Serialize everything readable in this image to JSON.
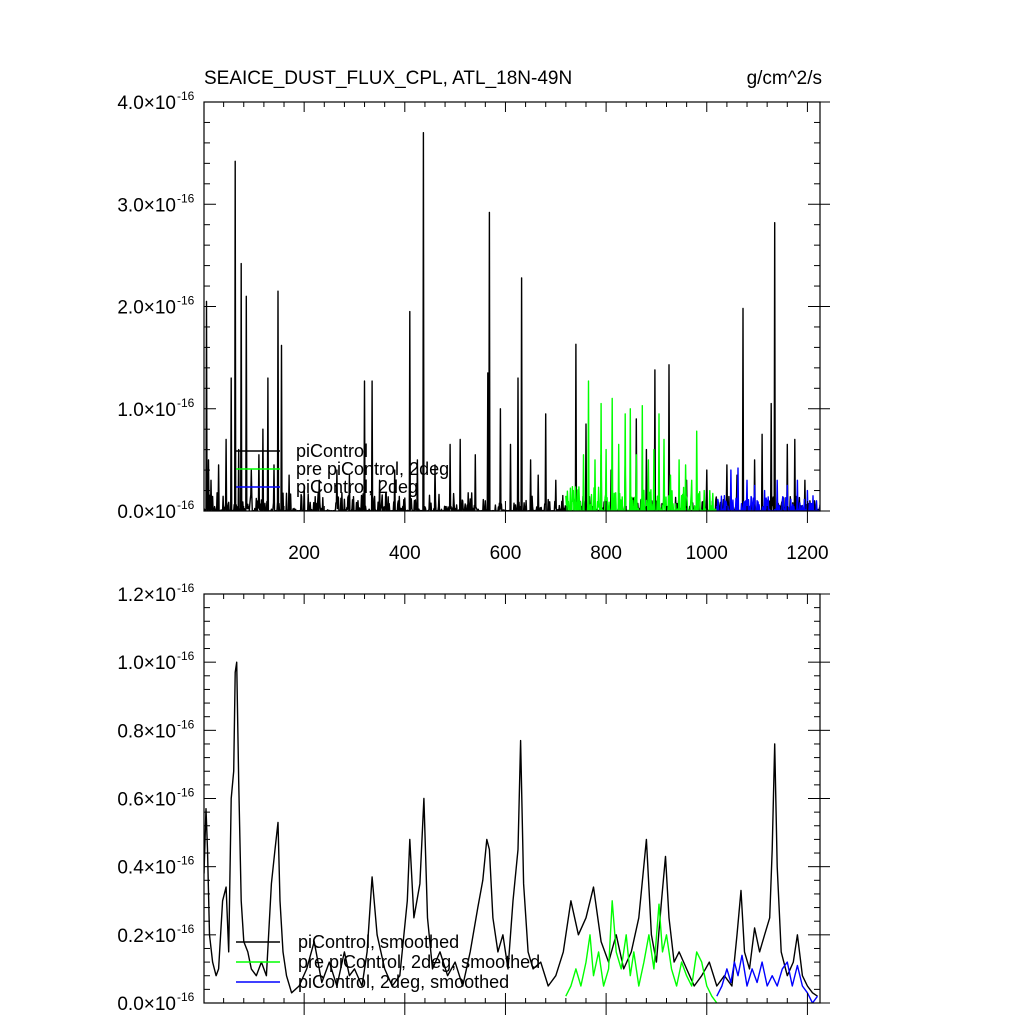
{
  "chart_data": [
    {
      "type": "line",
      "title_left": "SEAICE_DUST_FLUX_CPL, ATL_18N-49N",
      "title_right": "g/cm^2/s",
      "xlim": [
        1,
        1225
      ],
      "ylim": [
        0,
        4e-16
      ],
      "x_ticks": [
        200,
        400,
        600,
        800,
        1000,
        1200
      ],
      "x_tick_labels": [
        "200",
        "400",
        "600",
        "800",
        "1000",
        "1200"
      ],
      "y_ticks": [
        0,
        1e-16,
        2e-16,
        3e-16,
        4e-16
      ],
      "y_tick_labels": [
        {
          "mantissa": "0.0",
          "times": "×10",
          "exponent": "-16"
        },
        {
          "mantissa": "1.0",
          "times": "×10",
          "exponent": "-16"
        },
        {
          "mantissa": "2.0",
          "times": "×10",
          "exponent": "-16"
        },
        {
          "mantissa": "3.0",
          "times": "×10",
          "exponent": "-16"
        },
        {
          "mantissa": "4.0",
          "times": "×10",
          "exponent": "-16"
        }
      ],
      "legend_placement": "lower-left",
      "series": [
        {
          "name": "piControl",
          "color": "#000000",
          "x_range": [
            1,
            730
          ],
          "baseline": 5e-19,
          "noise_amp": 6e-18,
          "peaks": [
            [
              6,
              2.05e-16
            ],
            [
              10,
              5e-17
            ],
            [
              15,
              3e-17
            ],
            [
              30,
              4.5e-17
            ],
            [
              45,
              7e-17
            ],
            [
              55,
              1.3e-16
            ],
            [
              63,
              3.42e-16
            ],
            [
              70,
              6e-17
            ],
            [
              75,
              2.42e-16
            ],
            [
              85,
              2.1e-16
            ],
            [
              95,
              4e-17
            ],
            [
              110,
              5.5e-17
            ],
            [
              118,
              8e-17
            ],
            [
              128,
              1.3e-16
            ],
            [
              140,
              4.5e-17
            ],
            [
              148,
              2.15e-16
            ],
            [
              155,
              1.62e-16
            ],
            [
              170,
              3.5e-17
            ],
            [
              200,
              2.5e-17
            ],
            [
              230,
              3e-17
            ],
            [
              265,
              4e-17
            ],
            [
              290,
              3.5e-17
            ],
            [
              320,
              1.27e-16
            ],
            [
              335,
              1.27e-16
            ],
            [
              350,
              3e-17
            ],
            [
              380,
              4e-17
            ],
            [
              410,
              1.95e-16
            ],
            [
              425,
              5e-17
            ],
            [
              437,
              3.7e-16
            ],
            [
              460,
              4.5e-17
            ],
            [
              490,
              6.5e-17
            ],
            [
              510,
              7e-17
            ],
            [
              540,
              5.5e-17
            ],
            [
              565,
              1.35e-16
            ],
            [
              568,
              2.92e-16
            ],
            [
              590,
              1e-16
            ],
            [
              610,
              6.5e-17
            ],
            [
              625,
              1.3e-16
            ],
            [
              632,
              2.28e-16
            ],
            [
              650,
              5e-17
            ],
            [
              665,
              3.5e-17
            ],
            [
              680,
              9.5e-17
            ],
            [
              700,
              3e-17
            ]
          ]
        },
        {
          "name": "piControl",
          "color": "#000000",
          "x_range": [
            731,
            1225
          ],
          "baseline": 5e-19,
          "noise_amp": 5e-18,
          "peaks": [
            [
              740,
              1.63e-16
            ],
            [
              760,
              8.5e-17
            ],
            [
              790,
              5.5e-17
            ],
            [
              810,
              4e-17
            ],
            [
              838,
              4.5e-17
            ],
            [
              860,
              9e-17
            ],
            [
              880,
              6e-17
            ],
            [
              897,
              1.38e-16
            ],
            [
              925,
              1.43e-16
            ],
            [
              960,
              3e-17
            ],
            [
              1000,
              4e-17
            ],
            [
              1040,
              4.5e-17
            ],
            [
              1060,
              3.5e-17
            ],
            [
              1072,
              1.98e-16
            ],
            [
              1095,
              5e-17
            ],
            [
              1110,
              7.5e-17
            ],
            [
              1128,
              1.05e-16
            ],
            [
              1135,
              2.82e-16
            ],
            [
              1160,
              6.5e-17
            ],
            [
              1175,
              7e-17
            ],
            [
              1195,
              3e-17
            ]
          ]
        },
        {
          "name": "pre piControl, 2deg",
          "color": "#00ff00",
          "x_range": [
            720,
            1020
          ],
          "baseline": 5e-19,
          "noise_amp": 8e-18,
          "peaks": [
            [
              735,
              2e-17
            ],
            [
              755,
              5.5e-17
            ],
            [
              765,
              1.27e-16
            ],
            [
              778,
              5e-17
            ],
            [
              790,
              1.05e-16
            ],
            [
              800,
              6e-17
            ],
            [
              812,
              1.1e-16
            ],
            [
              825,
              6.5e-17
            ],
            [
              838,
              9.5e-17
            ],
            [
              848,
              1e-16
            ],
            [
              860,
              5.5e-17
            ],
            [
              872,
              1.03e-16
            ],
            [
              884,
              5e-17
            ],
            [
              895,
              6e-17
            ],
            [
              905,
              9.5e-17
            ],
            [
              915,
              7e-17
            ],
            [
              928,
              3.5e-17
            ],
            [
              945,
              5e-17
            ],
            [
              958,
              4.5e-17
            ],
            [
              970,
              3e-17
            ],
            [
              980,
              7.8e-17
            ],
            [
              995,
              2e-17
            ]
          ]
        },
        {
          "name": "piControl, 2deg",
          "color": "#0000ff",
          "x_range": [
            1020,
            1225
          ],
          "baseline": 5e-19,
          "noise_amp": 5e-18,
          "peaks": [
            [
              1035,
              1.5e-17
            ],
            [
              1048,
              4e-17
            ],
            [
              1062,
              4.2e-17
            ],
            [
              1080,
              3e-17
            ],
            [
              1095,
              2.5e-17
            ],
            [
              1115,
              2e-17
            ],
            [
              1140,
              3e-17
            ],
            [
              1160,
              2.5e-17
            ],
            [
              1180,
              3e-17
            ],
            [
              1200,
              2e-17
            ],
            [
              1218,
              1e-17
            ]
          ]
        }
      ]
    },
    {
      "type": "line",
      "xlim": [
        1,
        1225
      ],
      "ylim": [
        0,
        1.2e-16
      ],
      "x_ticks": [
        200,
        400,
        600,
        800,
        1000,
        1200
      ],
      "x_tick_labels": [],
      "y_ticks": [
        0,
        2e-17,
        4e-17,
        6e-17,
        8e-17,
        1e-16,
        1.2e-16
      ],
      "y_tick_labels": [
        {
          "mantissa": "0.0",
          "times": "×10",
          "exponent": "-16"
        },
        {
          "mantissa": "0.2",
          "times": "×10",
          "exponent": "-16"
        },
        {
          "mantissa": "0.4",
          "times": "×10",
          "exponent": "-16"
        },
        {
          "mantissa": "0.6",
          "times": "×10",
          "exponent": "-16"
        },
        {
          "mantissa": "0.8",
          "times": "×10",
          "exponent": "-16"
        },
        {
          "mantissa": "1.0",
          "times": "×10",
          "exponent": "-16"
        },
        {
          "mantissa": "1.2",
          "times": "×10",
          "exponent": "-16"
        }
      ],
      "legend_placement": "lower-left",
      "series": [
        {
          "name": "piControl, smoothed",
          "color": "#000000",
          "x": [
            1,
            5,
            8,
            12,
            18,
            25,
            30,
            38,
            45,
            50,
            55,
            60,
            63,
            66,
            70,
            75,
            80,
            88,
            95,
            105,
            115,
            125,
            135,
            142,
            148,
            152,
            158,
            165,
            175,
            190,
            205,
            220,
            235,
            250,
            265,
            280,
            290,
            300,
            315,
            325,
            335,
            345,
            360,
            375,
            390,
            405,
            410,
            418,
            430,
            438,
            445,
            455,
            470,
            485,
            500,
            515,
            530,
            545,
            555,
            563,
            568,
            575,
            585,
            595,
            605,
            615,
            625,
            630,
            636,
            645,
            655,
            670,
            685,
            700,
            715,
            730,
            745,
            760,
            775,
            790,
            805,
            820,
            835,
            850,
            865,
            880,
            890,
            900,
            910,
            918,
            925,
            935,
            945,
            960,
            975,
            990,
            1005,
            1020,
            1035,
            1050,
            1060,
            1068,
            1075,
            1085,
            1095,
            1105,
            1115,
            1125,
            1130,
            1135,
            1140,
            1148,
            1160,
            1172,
            1180,
            1190,
            1200,
            1210,
            1220
          ],
          "y": [
            3.8e-17,
            5.7e-17,
            4.5e-17,
            2e-17,
            1.2e-17,
            8e-18,
            1e-17,
            3e-17,
            3.4e-17,
            1.5e-17,
            6e-17,
            6.8e-17,
            9.7e-17,
            1e-16,
            6.5e-17,
            3e-17,
            1.8e-17,
            1.5e-17,
            1e-17,
            8e-18,
            1.2e-17,
            8e-18,
            3.5e-17,
            4.5e-17,
            5.3e-17,
            3e-17,
            1.5e-17,
            8e-18,
            3e-18,
            5e-18,
            1e-17,
            1.8e-17,
            6e-18,
            1.2e-17,
            5e-18,
            1.5e-17,
            8e-18,
            1e-17,
            5e-18,
            1.5e-17,
            3.7e-17,
            2e-17,
            1e-17,
            5e-18,
            8e-18,
            3e-17,
            4.8e-17,
            2.5e-17,
            3.5e-17,
            6e-17,
            2.5e-17,
            1e-17,
            1.5e-17,
            8e-18,
            1.2e-17,
            5e-18,
            1.5e-17,
            2.8e-17,
            3.6e-17,
            4.8e-17,
            4.5e-17,
            2.5e-17,
            1.5e-17,
            2e-17,
            1e-17,
            3e-17,
            4.5e-17,
            7.7e-17,
            3.5e-17,
            1.5e-17,
            1e-17,
            1.2e-17,
            5e-18,
            8e-18,
            1.5e-17,
            3e-17,
            2e-17,
            2.5e-17,
            3.4e-17,
            1.8e-17,
            1.2e-17,
            2e-17,
            1e-17,
            1.5e-17,
            2.5e-17,
            4.8e-17,
            2e-17,
            1.2e-17,
            3e-17,
            4.3e-17,
            2.5e-17,
            1.2e-17,
            1.5e-17,
            1e-17,
            5e-18,
            8e-18,
            1.2e-17,
            5e-18,
            8e-18,
            5e-18,
            2e-17,
            3.3e-17,
            1.5e-17,
            1e-17,
            2.2e-17,
            1.5e-17,
            2e-17,
            2.5e-17,
            4.5e-17,
            7.6e-17,
            4e-17,
            1.5e-17,
            8e-18,
            1.2e-17,
            2e-17,
            8e-18,
            5e-18,
            3e-18,
            2e-18
          ]
        },
        {
          "name": "pre piControl, 2deg, smoothed",
          "color": "#00ff00",
          "x": [
            720,
            730,
            740,
            750,
            760,
            768,
            775,
            785,
            795,
            805,
            812,
            820,
            830,
            840,
            848,
            855,
            865,
            875,
            885,
            895,
            905,
            912,
            920,
            930,
            940,
            950,
            960,
            970,
            980,
            990,
            1000,
            1010,
            1020
          ],
          "y": [
            2e-18,
            5e-18,
            1e-17,
            5e-18,
            1.2e-17,
            2e-17,
            8e-18,
            1.5e-17,
            5e-18,
            1e-17,
            3e-17,
            1.5e-17,
            1e-17,
            2e-17,
            8e-18,
            1.5e-17,
            5e-18,
            1.2e-17,
            2e-17,
            1e-17,
            2.9e-17,
            1.5e-17,
            2e-17,
            1e-17,
            5e-18,
            1.2e-17,
            8e-18,
            5e-18,
            1.5e-17,
            1.2e-17,
            5e-18,
            2e-18,
            0.0
          ]
        },
        {
          "name": "piControl, 2deg, smoothed",
          "color": "#0000ff",
          "x": [
            1020,
            1030,
            1040,
            1048,
            1055,
            1062,
            1070,
            1080,
            1090,
            1100,
            1110,
            1120,
            1130,
            1140,
            1150,
            1160,
            1170,
            1180,
            1190,
            1200,
            1210,
            1220
          ],
          "y": [
            2e-18,
            5e-18,
            1e-17,
            6e-18,
            1.2e-17,
            8e-18,
            1.4e-17,
            5e-18,
            1e-17,
            6e-18,
            1.2e-17,
            5e-18,
            8e-18,
            5e-18,
            1e-17,
            1.2e-17,
            5e-18,
            1.1e-17,
            5e-18,
            3e-18,
            0.0,
            2e-18
          ]
        }
      ]
    }
  ]
}
